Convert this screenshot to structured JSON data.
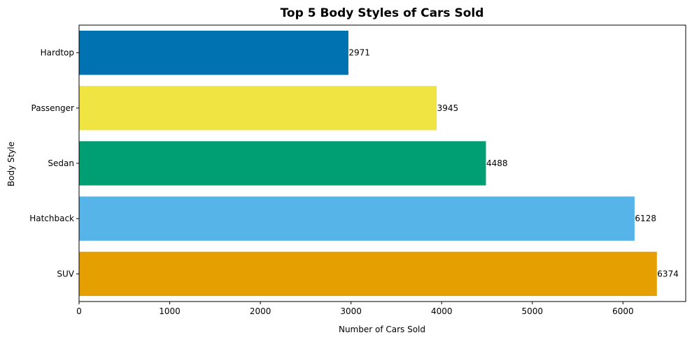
{
  "chart_data": {
    "type": "bar",
    "orientation": "horizontal",
    "title": "Top 5 Body Styles of Cars Sold",
    "xlabel": "Number of Cars Sold",
    "ylabel": "Body Style",
    "categories": [
      "SUV",
      "Hatchback",
      "Sedan",
      "Passenger",
      "Hardtop"
    ],
    "values": [
      6374,
      6128,
      4488,
      3945,
      2971
    ],
    "colors": [
      "#E69F00",
      "#56B4E9",
      "#009E73",
      "#F0E442",
      "#0072B2"
    ],
    "xlim": [
      0,
      6692
    ],
    "xticks": [
      0,
      1000,
      2000,
      3000,
      4000,
      5000,
      6000
    ],
    "xtick_labels": [
      "0",
      "1000",
      "2000",
      "3000",
      "4000",
      "5000",
      "6000"
    ],
    "grid": false,
    "legend": "none"
  }
}
